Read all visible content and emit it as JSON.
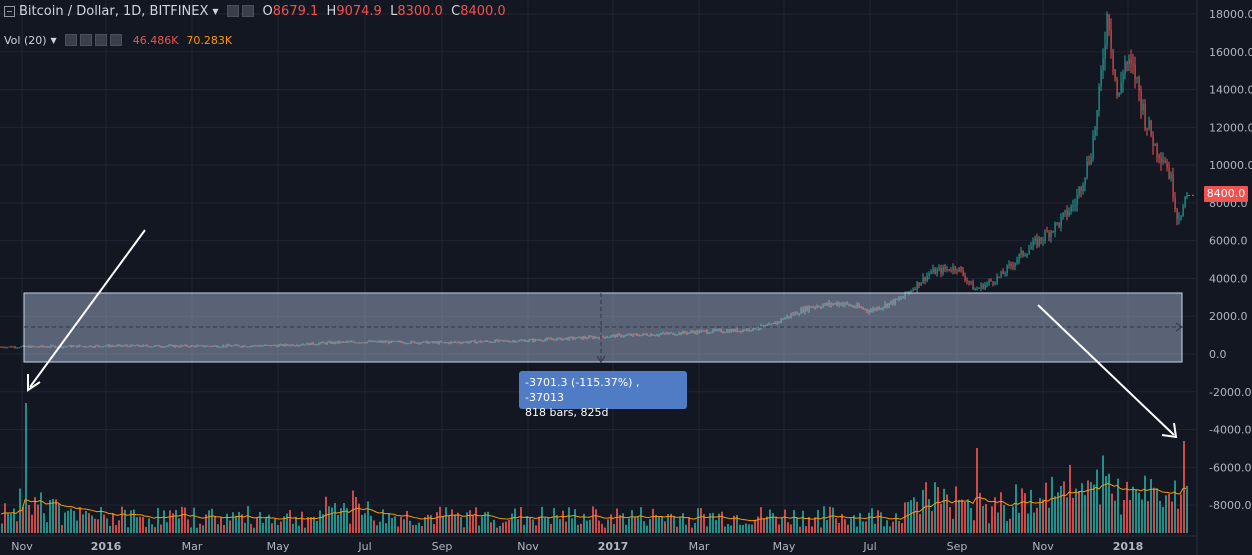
{
  "header": {
    "symbol_title": "Bitcoin / Dollar, 1D, BITFINEX",
    "ohlc": {
      "open_label": "O",
      "open": "8679.1",
      "high_label": "H",
      "high": "9074.9",
      "low_label": "L",
      "low": "8300.0",
      "close_label": "C",
      "close": "8400.0"
    }
  },
  "volume_indicator": {
    "label": "Vol (20)",
    "value": "46.486K",
    "ma_value": "70.283K"
  },
  "price_axis": {
    "ticks": [
      "18000.0",
      "16000.0",
      "14000.0",
      "12000.0",
      "10000.0",
      "8000.0",
      "6000.0",
      "4000.0",
      "2000.0",
      "0.0",
      "-2000.0",
      "-4000.0",
      "-6000.0",
      "-8000.0"
    ],
    "last_price_label": "8400.0"
  },
  "time_axis": {
    "ticks": [
      "Nov",
      "2016",
      "Mar",
      "May",
      "Jul",
      "Sep",
      "Nov",
      "2017",
      "Mar",
      "May",
      "Jul",
      "Sep",
      "Nov",
      "2018"
    ]
  },
  "measure_tooltip": {
    "line1": "-3701.3 (-115.37%) , -37013",
    "line2": "818 bars, 825d"
  },
  "colors": {
    "background": "#131722",
    "up": "#26a69a",
    "down": "#ef5350",
    "volume_ma": "#ff9800",
    "measure_fill": "#b2c1dc",
    "tooltip_bg": "#4f7cc4"
  },
  "chart_data": {
    "type": "candlestick",
    "price_range": [
      -8000,
      18000
    ],
    "series": [
      {
        "name": "",
        "x": [
          "Nov",
          "2016",
          "Mar",
          "May",
          "Jul",
          "Sep",
          "Nov",
          "2017",
          "Mar",
          "May",
          "Jul",
          "Sep",
          "Nov",
          "2018"
        ],
        "values": [
          380,
          430,
          420,
          450,
          650,
          600,
          720,
          960,
          1180,
          1900,
          2700,
          4400,
          7500,
          13500
        ]
      }
    ]
  }
}
